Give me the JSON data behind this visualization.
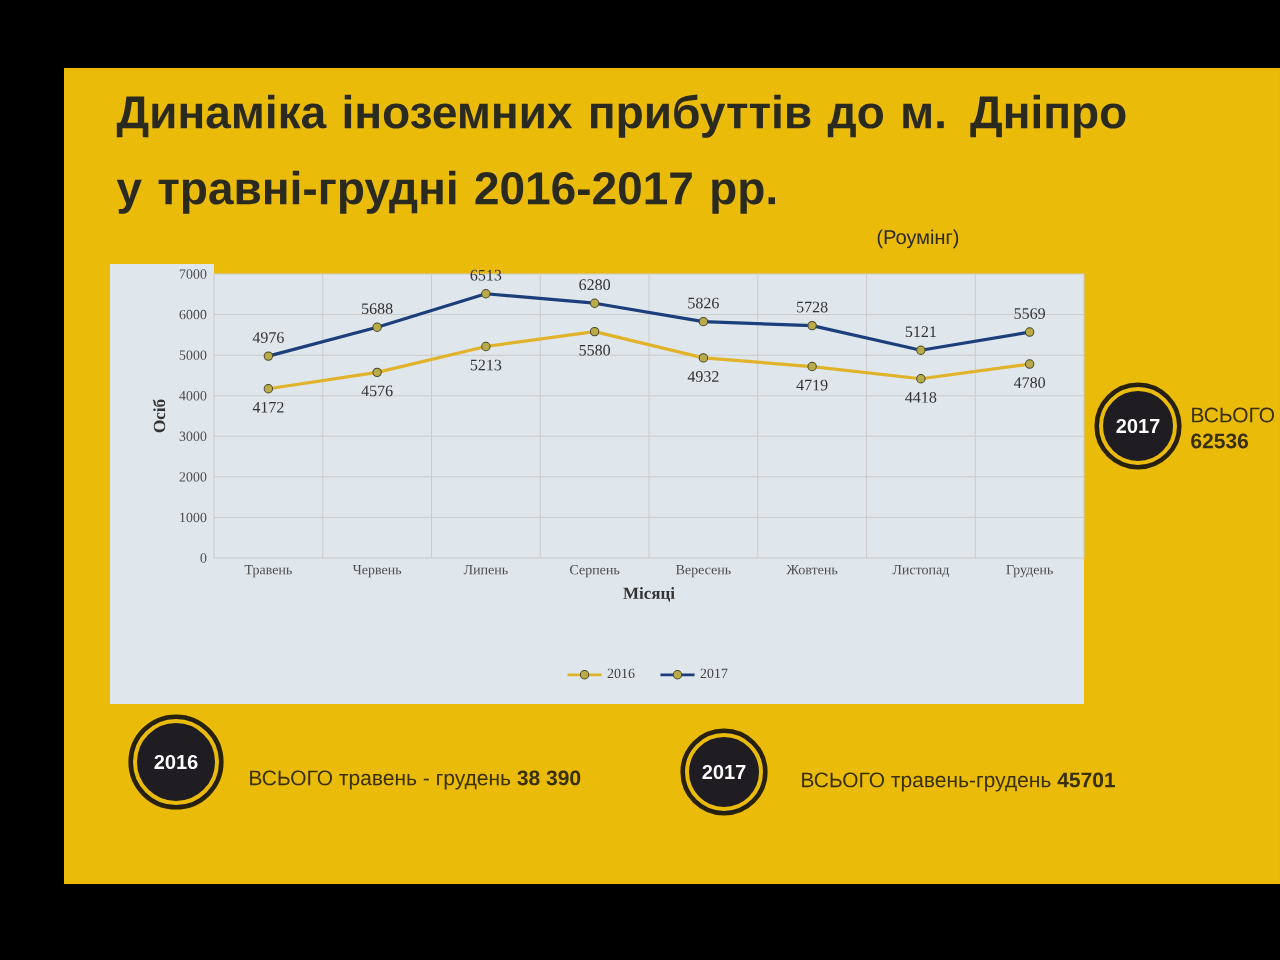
{
  "chart_data": {
    "type": "line",
    "title": "Динаміка іноземних прибуттів до м. Дніпро у травні-грудні 2016-2017 рр.",
    "subtitle": "(Роумінг)",
    "xlabel": "Місяці",
    "ylabel": "Осіб",
    "categories": [
      "Травень",
      "Червень",
      "Липень",
      "Серпень",
      "Вересень",
      "Жовтень",
      "Листопад",
      "Грудень"
    ],
    "series": [
      {
        "name": "2016",
        "color": "#e0b32a",
        "values": [
          4172,
          4576,
          5213,
          5580,
          4932,
          4719,
          4418,
          4780
        ]
      },
      {
        "name": "2017",
        "color": "#1c3f7c",
        "values": [
          4976,
          5688,
          6513,
          6280,
          5826,
          5728,
          5121,
          5569
        ]
      }
    ],
    "ylim": [
      0,
      7000
    ],
    "yticks": [
      0,
      1000,
      2000,
      3000,
      4000,
      5000,
      6000,
      7000
    ],
    "grid": true,
    "legend": "bottom",
    "marker": "circle",
    "data_labels": true,
    "annotations": [
      "2016",
      "ВСЬОГО травень - грудень **38 390**",
      "2017",
      "ВСЬОГО травень-грудень **45701**",
      "2017",
      "ВСЬОГО **62536**"
    ]
  }
}
